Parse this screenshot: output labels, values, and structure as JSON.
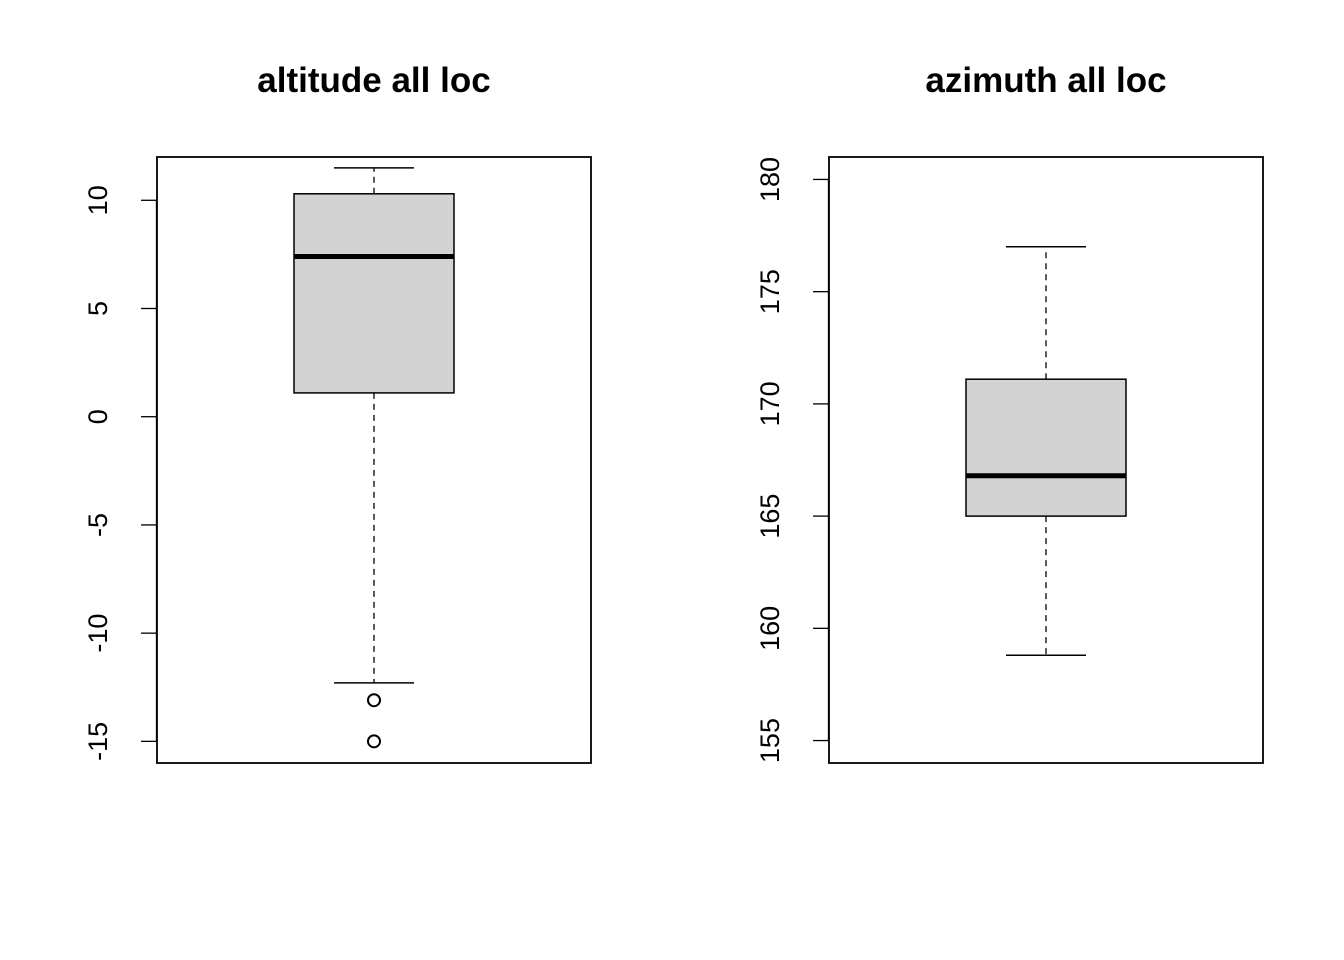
{
  "chart_data": [
    {
      "type": "boxplot",
      "title": "altitude all loc",
      "xlabel": "",
      "ylabel": "",
      "ylim": [
        -16,
        12
      ],
      "yticks": [
        -15,
        -10,
        -5,
        0,
        5,
        10
      ],
      "ytick_labels": [
        "-15",
        "-10",
        "-5",
        "0",
        "5",
        "10"
      ],
      "box": {
        "whisker_low": -12.3,
        "q1": 1.1,
        "median": 7.4,
        "q3": 10.3,
        "whisker_high": 11.5
      },
      "outliers": [
        -13.1,
        -15.0
      ],
      "grid": false
    },
    {
      "type": "boxplot",
      "title": "azimuth all loc",
      "xlabel": "",
      "ylabel": "",
      "ylim": [
        154,
        181
      ],
      "yticks": [
        155,
        160,
        165,
        170,
        175,
        180
      ],
      "ytick_labels": [
        "155",
        "160",
        "165",
        "170",
        "175",
        "180"
      ],
      "box": {
        "whisker_low": 158.8,
        "q1": 165.0,
        "median": 166.8,
        "q3": 171.1,
        "whisker_high": 177.0
      },
      "outliers": [],
      "grid": false
    }
  ]
}
